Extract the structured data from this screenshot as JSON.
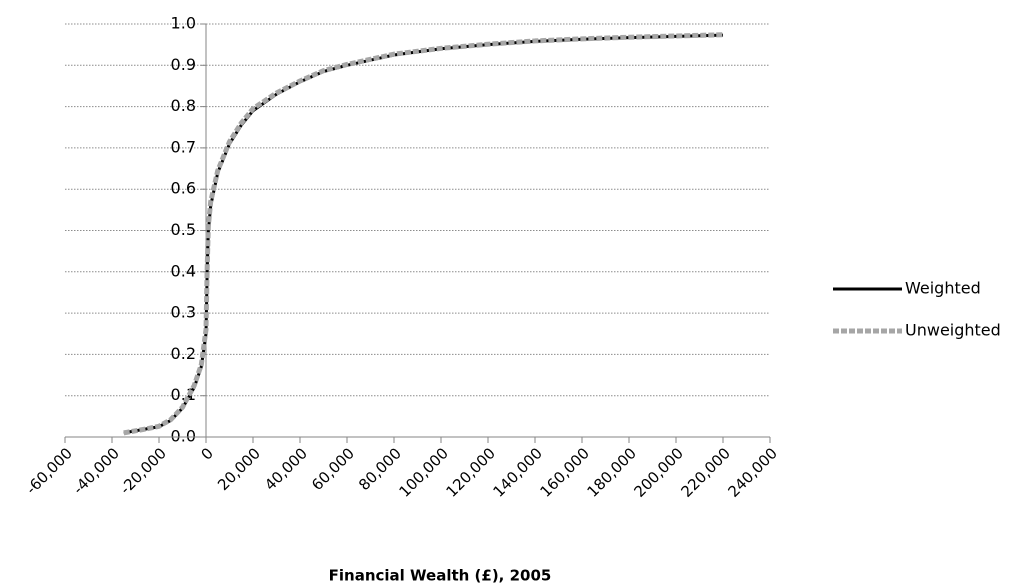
{
  "chart_data": {
    "type": "line",
    "x_label": "Financial Wealth (£), 2005",
    "x": [
      -35000,
      -30000,
      -25000,
      -20000,
      -15000,
      -10000,
      -5000,
      -2000,
      0,
      500,
      1000,
      2000,
      5000,
      10000,
      15000,
      20000,
      30000,
      40000,
      50000,
      60000,
      80000,
      100000,
      120000,
      140000,
      160000,
      180000,
      200000,
      220000
    ],
    "series": [
      {
        "name": "Weighted",
        "color": "#000000",
        "dash": false,
        "values": [
          0.01,
          0.015,
          0.02,
          0.025,
          0.04,
          0.07,
          0.12,
          0.17,
          0.25,
          0.4,
          0.5,
          0.56,
          0.64,
          0.71,
          0.755,
          0.79,
          0.83,
          0.86,
          0.885,
          0.9,
          0.925,
          0.94,
          0.95,
          0.958,
          0.963,
          0.967,
          0.97,
          0.973
        ]
      },
      {
        "name": "Unweighted",
        "color": "#a6a6a6",
        "dash": true,
        "values": [
          0.01,
          0.015,
          0.02,
          0.026,
          0.042,
          0.072,
          0.125,
          0.175,
          0.26,
          0.41,
          0.51,
          0.57,
          0.645,
          0.715,
          0.76,
          0.795,
          0.833,
          0.862,
          0.887,
          0.902,
          0.927,
          0.941,
          0.951,
          0.959,
          0.964,
          0.968,
          0.971,
          0.974
        ]
      }
    ],
    "xlim": [
      -60000,
      240000
    ],
    "xticks": [
      {
        "value": -60000,
        "label": "-60,000"
      },
      {
        "value": -40000,
        "label": "-40,000"
      },
      {
        "value": -20000,
        "label": "-20,000"
      },
      0,
      {
        "value": 20000,
        "label": "20,000"
      },
      {
        "value": 40000,
        "label": "40,000"
      },
      {
        "value": 60000,
        "label": "60,000"
      },
      {
        "value": 80000,
        "label": "80,000"
      },
      {
        "value": 100000,
        "label": "100,000"
      },
      {
        "value": 120000,
        "label": "120,000"
      },
      {
        "value": 140000,
        "label": "140,000"
      },
      {
        "value": 160000,
        "label": "160,000"
      },
      {
        "value": 180000,
        "label": "180,000"
      },
      {
        "value": 200000,
        "label": "200,000"
      },
      {
        "value": 220000,
        "label": "220,000"
      },
      {
        "value": 240000,
        "label": "240,000"
      }
    ],
    "ylim": [
      0,
      1
    ],
    "yticks": [
      {
        "value": 0,
        "label": "0.0"
      },
      0.1,
      0.2,
      0.3,
      0.4,
      0.5,
      0.6,
      0.7,
      0.8,
      0.9,
      {
        "value": 1,
        "label": "1.0"
      }
    ],
    "grid": true,
    "legend": "right"
  }
}
